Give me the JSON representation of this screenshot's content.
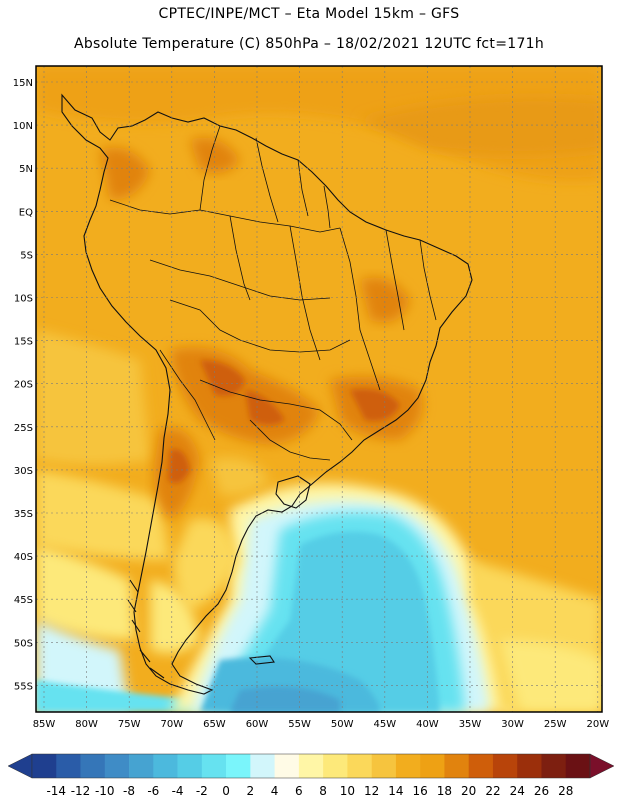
{
  "header": {
    "line1": "CPTEC/INPE/MCT  –  Eta Model 15km  –  GFS",
    "line2": "Absolute Temperature (C) 850hPa – 18/02/2021 12UTC fct=171h"
  },
  "map": {
    "lat_labels": [
      "15N",
      "10N",
      "5N",
      "EQ",
      "5S",
      "10S",
      "15S",
      "20S",
      "25S",
      "30S",
      "35S",
      "40S",
      "45S",
      "50S",
      "55S"
    ],
    "lon_labels": [
      "85W",
      "80W",
      "75W",
      "70W",
      "65W",
      "60W",
      "55W",
      "50W",
      "45W",
      "40W",
      "35W",
      "30W",
      "25W",
      "20W"
    ]
  },
  "colorbar": {
    "ticks": [
      "-14",
      "-12",
      "-10",
      "-8",
      "-6",
      "-4",
      "-2",
      "0",
      "2",
      "4",
      "6",
      "8",
      "10",
      "12",
      "14",
      "16",
      "18",
      "20",
      "22",
      "24",
      "26",
      "28"
    ],
    "colors": [
      "#1f3f8f",
      "#2a5ca8",
      "#3576b8",
      "#3f8cc6",
      "#46a3d1",
      "#4cb9dd",
      "#55cde6",
      "#66e2f0",
      "#7af5fb",
      "#d2f6fb",
      "#fffbe6",
      "#fff6a6",
      "#fde97a",
      "#fbd85a",
      "#f6c43e",
      "#f2ad1e",
      "#eea114",
      "#e1830e",
      "#cf5e0a",
      "#b8440a",
      "#9b2f0b",
      "#7d1f10",
      "#6a1114"
    ]
  }
}
